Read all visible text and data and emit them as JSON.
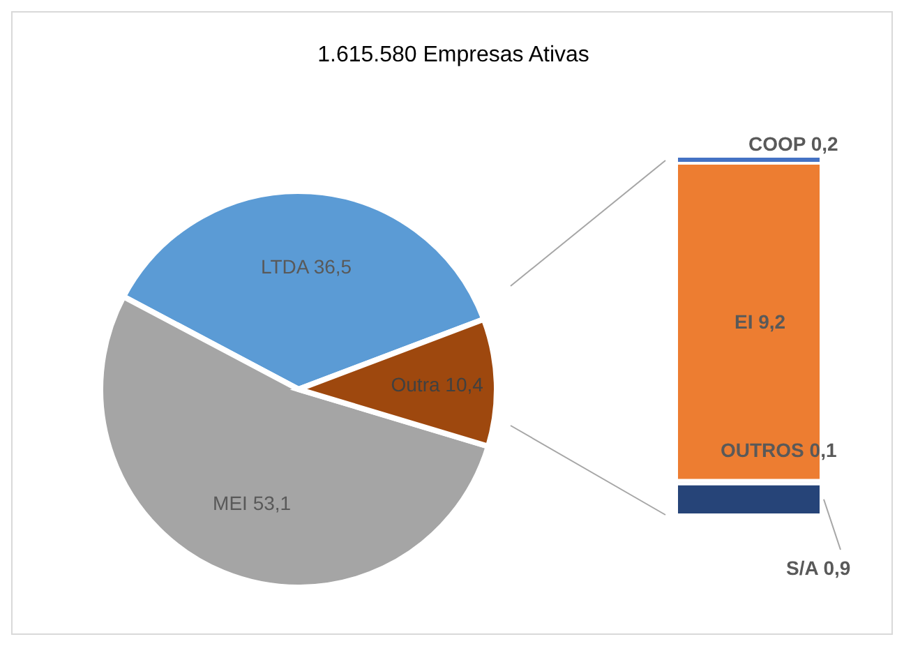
{
  "chart_data": [
    {
      "type": "pie",
      "title": "1.615.580 Empresas Ativas",
      "categories": [
        "LTDA",
        "MEI",
        "Outra"
      ],
      "values": [
        36.5,
        53.1,
        10.4
      ],
      "colors": [
        "#5b9bd5",
        "#a5a5a5",
        "#9e480e"
      ],
      "value_labels": [
        "36,5",
        "53,1",
        "10,4"
      ]
    },
    {
      "type": "bar",
      "stacked": true,
      "categories": [
        null
      ],
      "series": [
        {
          "name": "S/A",
          "color": "#264478",
          "values": [
            0.9
          ],
          "value_labels": [
            "0,9"
          ]
        },
        {
          "name": "OUTROS",
          "color": "#f2f2f2",
          "values": [
            0.1
          ],
          "value_labels": [
            "0,1"
          ]
        },
        {
          "name": "EI",
          "color": "#ed7d31",
          "values": [
            9.2
          ],
          "value_labels": [
            "9,2"
          ]
        },
        {
          "name": "COOP",
          "color": "#4472c4",
          "values": [
            0.2
          ],
          "value_labels": [
            "0,2"
          ]
        }
      ]
    }
  ]
}
